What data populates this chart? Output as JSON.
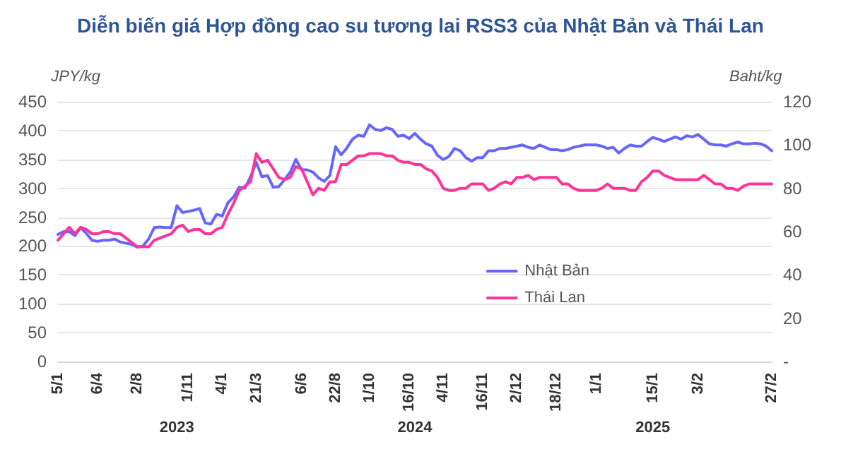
{
  "chart_data": {
    "type": "line",
    "title": "Diễn biến giá Hợp đồng cao su tương lai RSS3 của Nhật Bản và Thái Lan",
    "ylabel": "JPY/kg",
    "y2label": "Baht/kg",
    "categories": [
      "5/1",
      null,
      null,
      null,
      null,
      null,
      null,
      "6/4",
      null,
      null,
      null,
      null,
      null,
      null,
      "2/8",
      null,
      null,
      null,
      null,
      null,
      null,
      null,
      null,
      "1/11",
      null,
      null,
      null,
      null,
      null,
      "4/1",
      null,
      null,
      null,
      null,
      null,
      "21/3",
      null,
      null,
      null,
      null,
      null,
      null,
      null,
      "6/6",
      null,
      null,
      null,
      null,
      null,
      "22/8",
      null,
      null,
      null,
      null,
      null,
      "1/10",
      null,
      null,
      null,
      null,
      null,
      null,
      "16/10",
      null,
      null,
      null,
      null,
      null,
      "4/11",
      null,
      null,
      null,
      null,
      null,
      null,
      "16/11",
      null,
      null,
      null,
      null,
      null,
      "2/12",
      null,
      null,
      null,
      null,
      null,
      null,
      "18/12",
      null,
      null,
      null,
      null,
      null,
      null,
      "1/1",
      null,
      null,
      null,
      null,
      null,
      null,
      null,
      null,
      null,
      "15/1",
      null,
      null,
      null,
      null,
      null,
      null,
      null,
      "3/2",
      null,
      null,
      null,
      null,
      null,
      null,
      null,
      null,
      null,
      null,
      null,
      null,
      "27/2"
    ],
    "series": [
      {
        "name": "Nhật Bản",
        "color": "#6666ff",
        "values": [
          220,
          225,
          225,
          218,
          232,
          222,
          210,
          208,
          210,
          210,
          212,
          207,
          205,
          203,
          198,
          200,
          212,
          232,
          233,
          232,
          232,
          270,
          258,
          260,
          262,
          265,
          240,
          238,
          255,
          252,
          275,
          285,
          302,
          300,
          320,
          345,
          320,
          322,
          302,
          303,
          315,
          328,
          350,
          332,
          332,
          328,
          318,
          312,
          322,
          372,
          358,
          370,
          385,
          392,
          390,
          410,
          402,
          400,
          405,
          402,
          390,
          392,
          386,
          395,
          385,
          377,
          373,
          357,
          350,
          355,
          369,
          365,
          353,
          347,
          353,
          353,
          365,
          365,
          369,
          369,
          371,
          373,
          375,
          371,
          369,
          375,
          371,
          367,
          367,
          365,
          367,
          371,
          373,
          375,
          375,
          375,
          373,
          369,
          371,
          361,
          369,
          375,
          373,
          373,
          381,
          388,
          385,
          381,
          385,
          389,
          385,
          391,
          389,
          393,
          385,
          377,
          375,
          375,
          373,
          377,
          380,
          377,
          377,
          378,
          377,
          373,
          365
        ]
      },
      {
        "name": "Thái Lan",
        "color": "#ff3399",
        "axis": "y2",
        "values": [
          56,
          59,
          62,
          59,
          62,
          61,
          59,
          59,
          60,
          60,
          59,
          59,
          57,
          55,
          53,
          53,
          53,
          56,
          57,
          58,
          59,
          62,
          63,
          60,
          61,
          61,
          59,
          59,
          61,
          62,
          68,
          73,
          79,
          81,
          83,
          96,
          92,
          93,
          89,
          85,
          84,
          85,
          90,
          89,
          83,
          77,
          80,
          79,
          83,
          83,
          91,
          91,
          93,
          95,
          95,
          96,
          96,
          96,
          95,
          95,
          93,
          92,
          92,
          91,
          91,
          89,
          88,
          85,
          80,
          79,
          79,
          80,
          80,
          82,
          82,
          82,
          79,
          80,
          82,
          83,
          82,
          85,
          85,
          86,
          84,
          85,
          85,
          85,
          85,
          82,
          82,
          80,
          79,
          79,
          79,
          79,
          80,
          82,
          80,
          80,
          80,
          79,
          79,
          83,
          85,
          88,
          88,
          86,
          85,
          84,
          84,
          84,
          84,
          84,
          86,
          84,
          82,
          82,
          80,
          80,
          79,
          81,
          82,
          82,
          82,
          82,
          82
        ]
      }
    ],
    "ylim": [
      0,
      450
    ],
    "yticks": [
      0,
      50,
      100,
      150,
      200,
      250,
      300,
      350,
      400,
      450
    ],
    "y2lim": [
      0,
      120
    ],
    "y2ticks": [
      {
        "value": 0,
        "label": "-"
      },
      20,
      40,
      60,
      80,
      100,
      120
    ],
    "annotations": [
      "2023",
      "2024",
      "2025"
    ],
    "grid": "y",
    "legend": "right",
    "marker": "none",
    "line_style": "solid"
  }
}
